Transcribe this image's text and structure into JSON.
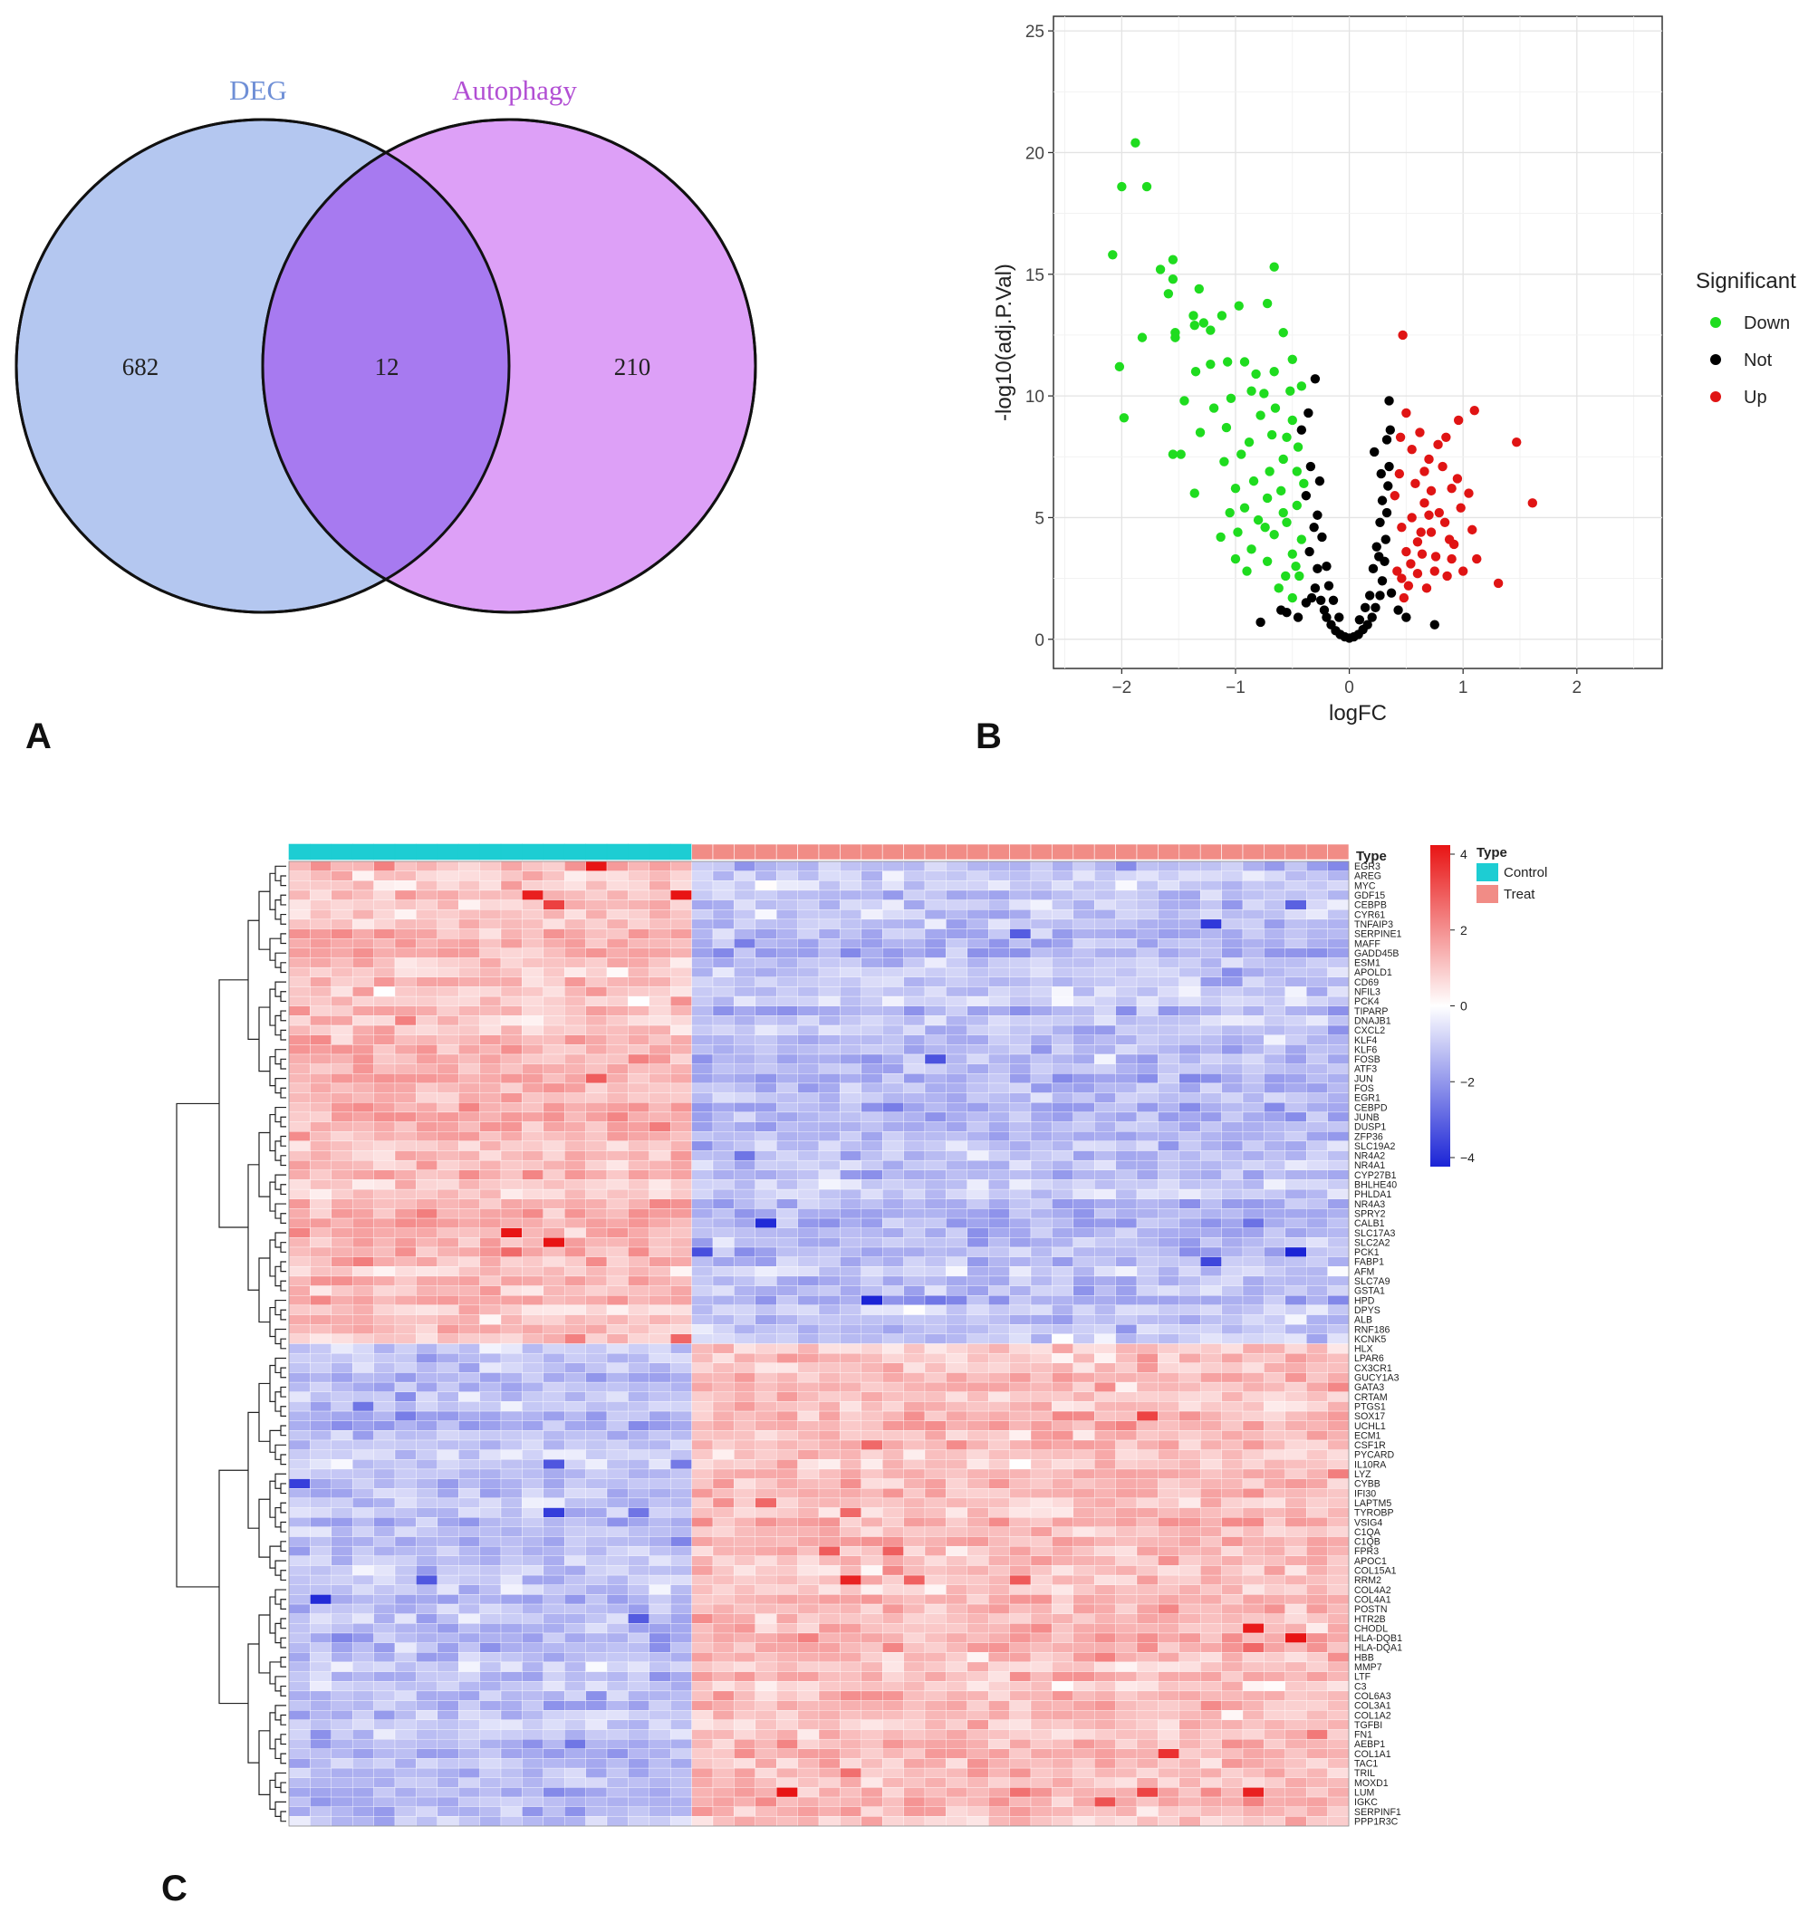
{
  "panels": {
    "a": "A",
    "b": "B",
    "c": "C"
  },
  "colors": {
    "deg_fill": "#b4c7f0",
    "autophagy_fill": "#dda0f7",
    "overlap_fill": "#a77af0",
    "deg_label": "#6f8fd6",
    "autophagy_label": "#b24fd4",
    "down": "#1fdc1f",
    "not": "#000000",
    "up": "#e01414",
    "control": "#1dcdd3",
    "treat": "#f18c86",
    "heat_low": "#1b24d6",
    "heat_mid": "#ffffff",
    "heat_high": "#e81414"
  },
  "chart_data": [
    {
      "type": "venn",
      "sets": [
        {
          "name": "DEG",
          "only": 682
        },
        {
          "name": "Autophagy",
          "only": 210
        }
      ],
      "intersection": 12
    },
    {
      "type": "scatter",
      "title": "",
      "xlabel": "logFC",
      "ylabel": "-log10(adj.P.Val)",
      "xlim": [
        -2.6,
        2.75
      ],
      "ylim": [
        -1.2,
        25.6
      ],
      "xticks": [
        -2,
        -1,
        0,
        1,
        2
      ],
      "xtick_labels": [
        "−2",
        "−1",
        "0",
        "1",
        "2"
      ],
      "yticks": [
        0,
        5,
        10,
        15,
        20,
        25
      ],
      "grid": true,
      "legend": {
        "title": "Significant",
        "position": "right",
        "entries": [
          "Down",
          "Not",
          "Up"
        ]
      },
      "series": [
        {
          "name": "Down",
          "points": [
            [
              -1.88,
              20.4
            ],
            [
              -2.0,
              18.6
            ],
            [
              -1.78,
              18.6
            ],
            [
              -2.08,
              15.8
            ],
            [
              -1.55,
              15.6
            ],
            [
              -1.66,
              15.2
            ],
            [
              -1.55,
              14.8
            ],
            [
              -1.59,
              14.2
            ],
            [
              -1.32,
              14.4
            ],
            [
              -1.37,
              13.3
            ],
            [
              -1.28,
              13.0
            ],
            [
              -1.22,
              12.7
            ],
            [
              -1.36,
              12.9
            ],
            [
              -1.12,
              13.3
            ],
            [
              -1.53,
              12.6
            ],
            [
              -1.53,
              12.4
            ],
            [
              -1.82,
              12.4
            ],
            [
              -0.97,
              13.7
            ],
            [
              -0.66,
              15.3
            ],
            [
              -0.72,
              13.8
            ],
            [
              -0.58,
              12.6
            ],
            [
              -2.02,
              11.2
            ],
            [
              -1.98,
              9.1
            ],
            [
              -1.35,
              11.0
            ],
            [
              -1.22,
              11.3
            ],
            [
              -1.07,
              11.4
            ],
            [
              -1.45,
              9.8
            ],
            [
              -1.55,
              7.6
            ],
            [
              -1.48,
              7.6
            ],
            [
              -1.36,
              6.0
            ],
            [
              -1.19,
              9.5
            ],
            [
              -1.31,
              8.5
            ],
            [
              -1.08,
              8.7
            ],
            [
              -0.92,
              11.4
            ],
            [
              -0.82,
              10.9
            ],
            [
              -0.66,
              11.0
            ],
            [
              -0.75,
              10.1
            ],
            [
              -0.5,
              11.5
            ],
            [
              -0.42,
              10.4
            ],
            [
              -1.1,
              7.3
            ],
            [
              -1.0,
              6.2
            ],
            [
              -0.95,
              7.6
            ],
            [
              -0.88,
              8.1
            ],
            [
              -0.78,
              9.2
            ],
            [
              -0.68,
              8.4
            ],
            [
              -0.58,
              7.4
            ],
            [
              -0.5,
              9.0
            ],
            [
              -0.46,
              6.9
            ],
            [
              -1.05,
              5.2
            ],
            [
              -0.98,
              4.4
            ],
            [
              -0.92,
              5.4
            ],
            [
              -0.86,
              3.7
            ],
            [
              -0.8,
              4.9
            ],
            [
              -0.72,
              5.8
            ],
            [
              -0.66,
              4.3
            ],
            [
              -0.6,
              6.1
            ],
            [
              -0.55,
              4.8
            ],
            [
              -0.5,
              3.5
            ],
            [
              -0.46,
              5.5
            ],
            [
              -0.44,
              2.6
            ],
            [
              -0.42,
              4.1
            ],
            [
              -0.4,
              6.4
            ],
            [
              -1.13,
              4.2
            ],
            [
              -0.72,
              3.2
            ],
            [
              -0.62,
              2.1
            ],
            [
              -0.56,
              2.6
            ],
            [
              -0.5,
              1.7
            ],
            [
              -0.47,
              3.0
            ],
            [
              -0.84,
              6.5
            ],
            [
              -0.7,
              6.9
            ],
            [
              -0.65,
              9.5
            ],
            [
              -0.55,
              8.3
            ],
            [
              -0.52,
              10.2
            ],
            [
              -0.86,
              10.2
            ],
            [
              -1.04,
              9.9
            ],
            [
              -0.9,
              2.8
            ],
            [
              -1.0,
              3.3
            ],
            [
              -0.58,
              5.2
            ],
            [
              -0.74,
              4.6
            ],
            [
              -0.45,
              7.9
            ]
          ]
        },
        {
          "name": "Not",
          "points": [
            [
              -0.3,
              10.7
            ],
            [
              -0.36,
              9.3
            ],
            [
              -0.42,
              8.6
            ],
            [
              -0.34,
              7.1
            ],
            [
              -0.38,
              5.9
            ],
            [
              -0.31,
              4.6
            ],
            [
              -0.35,
              3.6
            ],
            [
              -0.28,
              2.9
            ],
            [
              -0.3,
              2.1
            ],
            [
              -0.25,
              1.6
            ],
            [
              -0.22,
              1.2
            ],
            [
              -0.2,
              0.9
            ],
            [
              -0.16,
              0.6
            ],
            [
              -0.12,
              0.35
            ],
            [
              -0.08,
              0.2
            ],
            [
              -0.04,
              0.1
            ],
            [
              0.0,
              0.05
            ],
            [
              0.04,
              0.1
            ],
            [
              0.08,
              0.2
            ],
            [
              0.12,
              0.4
            ],
            [
              0.16,
              0.6
            ],
            [
              0.2,
              0.9
            ],
            [
              0.23,
              1.3
            ],
            [
              0.27,
              1.8
            ],
            [
              0.29,
              2.4
            ],
            [
              0.31,
              3.2
            ],
            [
              0.32,
              4.1
            ],
            [
              0.33,
              5.2
            ],
            [
              0.34,
              6.3
            ],
            [
              0.35,
              7.1
            ],
            [
              0.33,
              8.2
            ],
            [
              0.36,
              8.6
            ],
            [
              0.35,
              9.8
            ],
            [
              0.22,
              7.7
            ],
            [
              -0.26,
              6.5
            ],
            [
              -0.24,
              4.2
            ],
            [
              -0.2,
              3.0
            ],
            [
              -0.18,
              2.2
            ],
            [
              0.18,
              1.8
            ],
            [
              0.21,
              2.9
            ],
            [
              0.24,
              3.8
            ],
            [
              0.27,
              4.8
            ],
            [
              0.29,
              5.7
            ],
            [
              0.28,
              6.8
            ],
            [
              -0.55,
              1.1
            ],
            [
              -0.6,
              1.2
            ],
            [
              -0.45,
              0.9
            ],
            [
              -0.78,
              0.7
            ],
            [
              0.75,
              0.6
            ],
            [
              0.5,
              0.9
            ],
            [
              0.43,
              1.2
            ],
            [
              -0.14,
              1.6
            ],
            [
              0.14,
              1.3
            ],
            [
              -0.09,
              0.9
            ],
            [
              0.09,
              0.8
            ],
            [
              -0.33,
              1.7
            ],
            [
              0.37,
              1.9
            ],
            [
              -0.38,
              1.5
            ],
            [
              -0.28,
              5.1
            ],
            [
              0.26,
              3.4
            ]
          ]
        },
        {
          "name": "Up",
          "points": [
            [
              0.47,
              12.5
            ],
            [
              1.47,
              8.1
            ],
            [
              1.61,
              5.6
            ],
            [
              1.31,
              2.3
            ],
            [
              1.1,
              9.4
            ],
            [
              0.96,
              9.0
            ],
            [
              0.85,
              8.3
            ],
            [
              0.78,
              8.0
            ],
            [
              0.7,
              7.4
            ],
            [
              0.62,
              8.5
            ],
            [
              0.55,
              7.8
            ],
            [
              0.5,
              9.3
            ],
            [
              0.45,
              8.3
            ],
            [
              1.05,
              6.0
            ],
            [
              0.98,
              5.4
            ],
            [
              0.9,
              6.2
            ],
            [
              0.84,
              4.8
            ],
            [
              0.79,
              5.2
            ],
            [
              0.72,
              4.4
            ],
            [
              0.66,
              5.6
            ],
            [
              0.6,
              4.0
            ],
            [
              0.55,
              5.0
            ],
            [
              0.5,
              3.6
            ],
            [
              0.46,
              4.6
            ],
            [
              0.44,
              6.8
            ],
            [
              0.42,
              2.8
            ],
            [
              0.4,
              5.9
            ],
            [
              1.12,
              3.3
            ],
            [
              1.0,
              2.8
            ],
            [
              0.92,
              3.9
            ],
            [
              0.86,
              2.6
            ],
            [
              0.76,
              3.4
            ],
            [
              0.68,
              2.1
            ],
            [
              0.6,
              2.7
            ],
            [
              0.52,
              2.2
            ],
            [
              0.48,
              1.7
            ],
            [
              0.58,
              6.4
            ],
            [
              0.66,
              6.9
            ],
            [
              0.72,
              6.1
            ],
            [
              0.82,
              7.1
            ],
            [
              0.9,
              3.3
            ],
            [
              0.75,
              2.8
            ],
            [
              0.64,
              3.5
            ],
            [
              1.08,
              4.5
            ],
            [
              0.88,
              4.1
            ],
            [
              0.54,
              3.1
            ],
            [
              0.46,
              2.5
            ],
            [
              0.63,
              4.4
            ],
            [
              0.7,
              5.1
            ],
            [
              0.95,
              6.6
            ]
          ]
        }
      ]
    },
    {
      "type": "heatmap",
      "color_scale": {
        "min": -4,
        "max": 4,
        "ticks": [
          "4",
          "2",
          "0",
          "−2",
          "−4"
        ]
      },
      "annotation": {
        "title": "Type",
        "legend_title": "Type",
        "groups": [
          {
            "name": "Control",
            "count": 19
          },
          {
            "name": "Treat",
            "count": 31
          }
        ]
      },
      "genes": [
        "EGR3",
        "AREG",
        "MYC",
        "GDF15",
        "CEBPB",
        "CYR61",
        "TNFAIP3",
        "SERPINE1",
        "MAFF",
        "GADD45B",
        "ESM1",
        "APOLD1",
        "CD69",
        "NFIL3",
        "PCK4",
        "TIPARP",
        "DNAJB1",
        "CXCL2",
        "KLF4",
        "KLF6",
        "FOSB",
        "ATF3",
        "JUN",
        "FOS",
        "EGR1",
        "CEBPD",
        "JUNB",
        "DUSP1",
        "ZFP36",
        "SLC19A2",
        "NR4A2",
        "NR4A1",
        "CYP27B1",
        "BHLHE40",
        "PHLDA1",
        "NR4A3",
        "SPRY2",
        "CALB1",
        "SLC17A3",
        "SLC2A2",
        "PCK1",
        "FABP1",
        "AFM",
        "SLC7A9",
        "GSTA1",
        "HPD",
        "DPYS",
        "ALB",
        "RNF186",
        "KCNK5",
        "HLX",
        "LPAR6",
        "CX3CR1",
        "GUCY1A3",
        "GATA3",
        "CRTAM",
        "PTGS1",
        "SOX17",
        "UCHL1",
        "ECM1",
        "CSF1R",
        "PYCARD",
        "IL10RA",
        "LYZ",
        "CYBB",
        "IFI30",
        "LAPTM5",
        "TYROBP",
        "VSIG4",
        "C1QA",
        "C1QB",
        "FPR3",
        "APOC1",
        "COL15A1",
        "RRM2",
        "COL4A2",
        "COL4A1",
        "POSTN",
        "HTR2B",
        "CHODL",
        "HLA-DQB1",
        "HLA-DQA1",
        "HBB",
        "MMP7",
        "LTF",
        "C3",
        "COL6A3",
        "COL3A1",
        "COL1A2",
        "TGFBI",
        "FN1",
        "AEBP1",
        "COL1A1",
        "TAC1",
        "TRIL",
        "MOXD1",
        "LUM",
        "IGKC",
        "SERPINF1",
        "PPP1R3C"
      ],
      "up_in_control_gene_count": 50
    }
  ]
}
